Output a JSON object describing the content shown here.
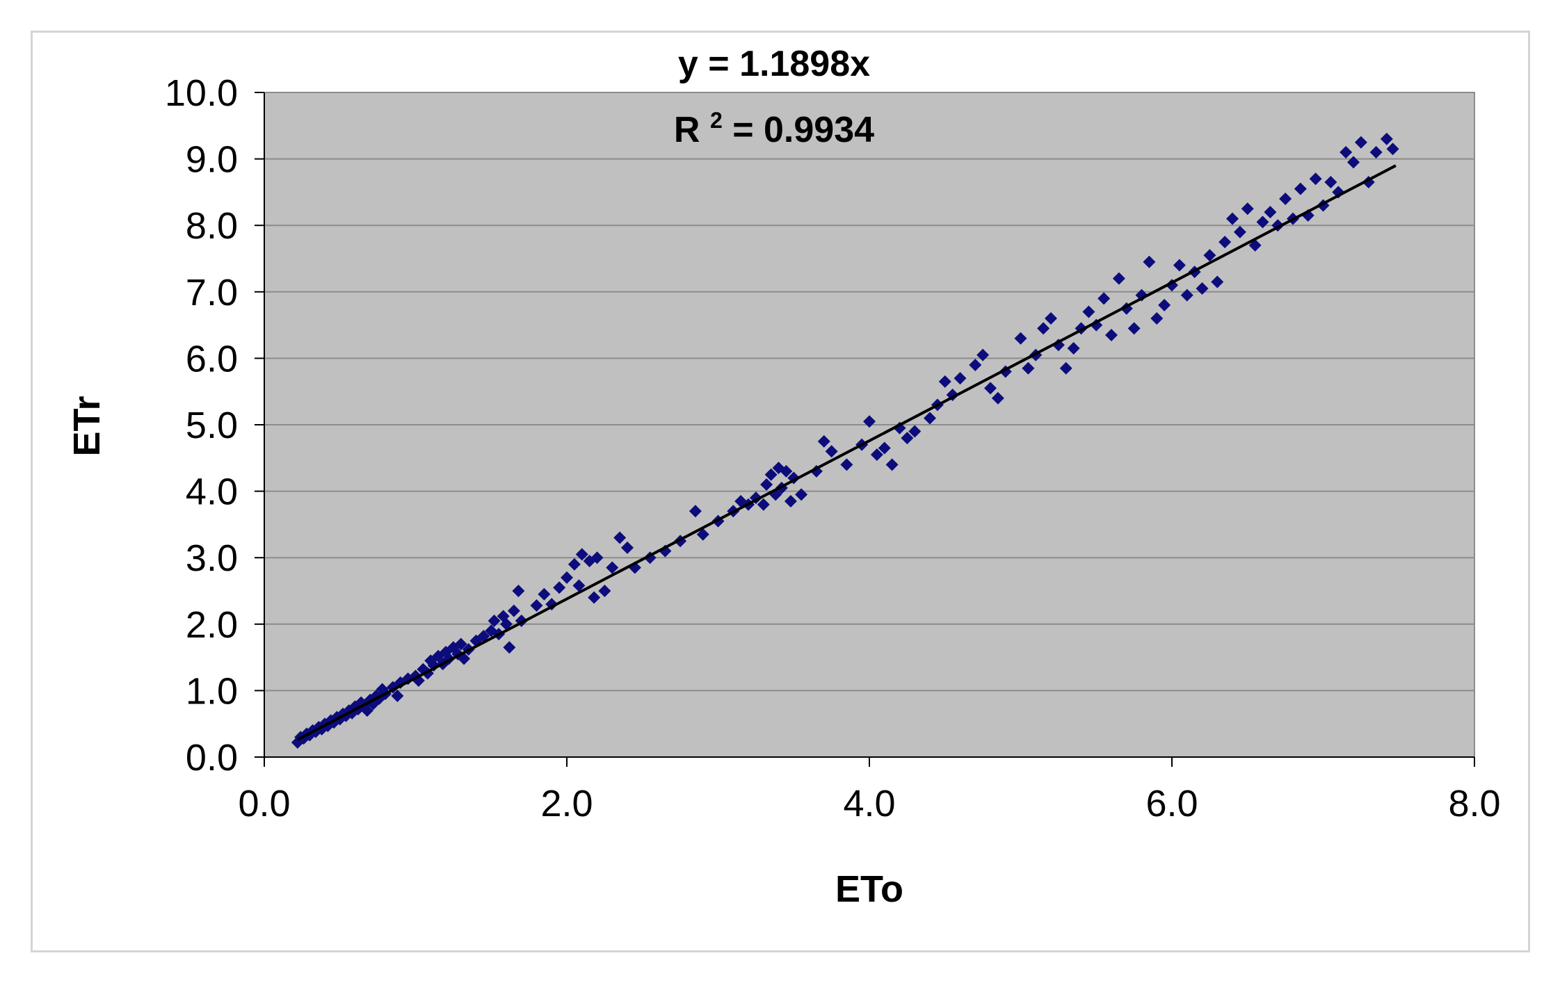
{
  "chart_data": {
    "type": "scatter",
    "xlabel": "ETo",
    "ylabel": "ETr",
    "xlim": [
      0,
      8
    ],
    "ylim": [
      0,
      10
    ],
    "x_ticks": [
      "0.0",
      "2.0",
      "4.0",
      "6.0",
      "8.0"
    ],
    "y_ticks": [
      "0.0",
      "1.0",
      "2.0",
      "3.0",
      "4.0",
      "5.0",
      "6.0",
      "7.0",
      "8.0",
      "9.0",
      "10.0"
    ],
    "grid": true,
    "legend": "none",
    "trendline": {
      "equation": "y = 1.1898x",
      "r2_prefix": "R",
      "r2_sup": "2",
      "r2_value": " = 0.9934",
      "slope": 1.1898,
      "x_range": [
        0.22,
        7.48
      ]
    },
    "colors": {
      "plot_background": "#c0c0c0",
      "marker": "#0c0c7c",
      "trendline": "#000000",
      "gridline": "#8c8c8c"
    },
    "series": [
      {
        "marker": "diamond",
        "points": [
          [
            0.22,
            0.22
          ],
          [
            0.24,
            0.3
          ],
          [
            0.26,
            0.28
          ],
          [
            0.28,
            0.35
          ],
          [
            0.3,
            0.33
          ],
          [
            0.32,
            0.4
          ],
          [
            0.34,
            0.38
          ],
          [
            0.36,
            0.45
          ],
          [
            0.38,
            0.42
          ],
          [
            0.4,
            0.5
          ],
          [
            0.42,
            0.47
          ],
          [
            0.44,
            0.55
          ],
          [
            0.46,
            0.52
          ],
          [
            0.48,
            0.6
          ],
          [
            0.5,
            0.57
          ],
          [
            0.52,
            0.65
          ],
          [
            0.54,
            0.62
          ],
          [
            0.56,
            0.7
          ],
          [
            0.58,
            0.66
          ],
          [
            0.6,
            0.76
          ],
          [
            0.62,
            0.72
          ],
          [
            0.64,
            0.82
          ],
          [
            0.66,
            0.78
          ],
          [
            0.68,
            0.7
          ],
          [
            0.7,
            0.86
          ],
          [
            0.72,
            0.8
          ],
          [
            0.74,
            0.92
          ],
          [
            0.76,
            0.88
          ],
          [
            0.78,
            1.02
          ],
          [
            0.8,
            0.95
          ],
          [
            0.85,
            1.05
          ],
          [
            0.88,
            0.92
          ],
          [
            0.9,
            1.12
          ],
          [
            0.95,
            1.18
          ],
          [
            1.0,
            1.22
          ],
          [
            1.02,
            1.15
          ],
          [
            1.05,
            1.32
          ],
          [
            1.08,
            1.26
          ],
          [
            1.1,
            1.45
          ],
          [
            1.12,
            1.38
          ],
          [
            1.15,
            1.52
          ],
          [
            1.18,
            1.4
          ],
          [
            1.2,
            1.58
          ],
          [
            1.22,
            1.48
          ],
          [
            1.25,
            1.65
          ],
          [
            1.28,
            1.55
          ],
          [
            1.3,
            1.7
          ],
          [
            1.32,
            1.48
          ],
          [
            1.35,
            1.62
          ],
          [
            1.4,
            1.75
          ],
          [
            1.45,
            1.82
          ],
          [
            1.5,
            1.9
          ],
          [
            1.52,
            2.05
          ],
          [
            1.55,
            1.85
          ],
          [
            1.58,
            2.12
          ],
          [
            1.6,
            2.0
          ],
          [
            1.62,
            1.65
          ],
          [
            1.65,
            2.2
          ],
          [
            1.68,
            2.5
          ],
          [
            1.7,
            2.05
          ],
          [
            1.8,
            2.28
          ],
          [
            1.85,
            2.45
          ],
          [
            1.9,
            2.3
          ],
          [
            1.95,
            2.55
          ],
          [
            2.0,
            2.7
          ],
          [
            2.05,
            2.9
          ],
          [
            2.08,
            2.58
          ],
          [
            2.1,
            3.05
          ],
          [
            2.15,
            2.95
          ],
          [
            2.18,
            2.4
          ],
          [
            2.2,
            3.0
          ],
          [
            2.25,
            2.5
          ],
          [
            2.3,
            2.85
          ],
          [
            2.35,
            3.3
          ],
          [
            2.4,
            3.15
          ],
          [
            2.45,
            2.85
          ],
          [
            2.55,
            3.0
          ],
          [
            2.65,
            3.1
          ],
          [
            2.75,
            3.25
          ],
          [
            2.85,
            3.7
          ],
          [
            2.9,
            3.35
          ],
          [
            3.0,
            3.55
          ],
          [
            3.1,
            3.7
          ],
          [
            3.15,
            3.85
          ],
          [
            3.2,
            3.8
          ],
          [
            3.25,
            3.9
          ],
          [
            3.3,
            3.8
          ],
          [
            3.32,
            4.1
          ],
          [
            3.35,
            4.25
          ],
          [
            3.38,
            3.95
          ],
          [
            3.4,
            4.35
          ],
          [
            3.42,
            4.05
          ],
          [
            3.45,
            4.3
          ],
          [
            3.48,
            3.85
          ],
          [
            3.5,
            4.2
          ],
          [
            3.55,
            3.95
          ],
          [
            3.65,
            4.3
          ],
          [
            3.7,
            4.75
          ],
          [
            3.75,
            4.6
          ],
          [
            3.85,
            4.4
          ],
          [
            3.95,
            4.7
          ],
          [
            4.0,
            5.05
          ],
          [
            4.05,
            4.55
          ],
          [
            4.1,
            4.65
          ],
          [
            4.15,
            4.4
          ],
          [
            4.2,
            4.95
          ],
          [
            4.25,
            4.8
          ],
          [
            4.3,
            4.9
          ],
          [
            4.4,
            5.1
          ],
          [
            4.45,
            5.3
          ],
          [
            4.5,
            5.65
          ],
          [
            4.55,
            5.45
          ],
          [
            4.6,
            5.7
          ],
          [
            4.7,
            5.9
          ],
          [
            4.75,
            6.05
          ],
          [
            4.8,
            5.55
          ],
          [
            4.85,
            5.4
          ],
          [
            4.9,
            5.8
          ],
          [
            5.0,
            6.3
          ],
          [
            5.05,
            5.85
          ],
          [
            5.1,
            6.05
          ],
          [
            5.15,
            6.45
          ],
          [
            5.2,
            6.6
          ],
          [
            5.25,
            6.2
          ],
          [
            5.3,
            5.85
          ],
          [
            5.35,
            6.15
          ],
          [
            5.4,
            6.45
          ],
          [
            5.45,
            6.7
          ],
          [
            5.5,
            6.5
          ],
          [
            5.55,
            6.9
          ],
          [
            5.6,
            6.35
          ],
          [
            5.65,
            7.2
          ],
          [
            5.7,
            6.75
          ],
          [
            5.75,
            6.45
          ],
          [
            5.8,
            6.95
          ],
          [
            5.85,
            7.45
          ],
          [
            5.9,
            6.6
          ],
          [
            5.95,
            6.8
          ],
          [
            6.0,
            7.1
          ],
          [
            6.05,
            7.4
          ],
          [
            6.1,
            6.95
          ],
          [
            6.15,
            7.3
          ],
          [
            6.2,
            7.05
          ],
          [
            6.25,
            7.55
          ],
          [
            6.3,
            7.15
          ],
          [
            6.35,
            7.75
          ],
          [
            6.4,
            8.1
          ],
          [
            6.45,
            7.9
          ],
          [
            6.5,
            8.25
          ],
          [
            6.55,
            7.7
          ],
          [
            6.6,
            8.05
          ],
          [
            6.65,
            8.2
          ],
          [
            6.7,
            8.0
          ],
          [
            6.75,
            8.4
          ],
          [
            6.8,
            8.1
          ],
          [
            6.85,
            8.55
          ],
          [
            6.9,
            8.15
          ],
          [
            6.95,
            8.7
          ],
          [
            7.0,
            8.3
          ],
          [
            7.05,
            8.65
          ],
          [
            7.1,
            8.5
          ],
          [
            7.15,
            9.1
          ],
          [
            7.2,
            8.95
          ],
          [
            7.25,
            9.25
          ],
          [
            7.3,
            8.65
          ],
          [
            7.35,
            9.1
          ],
          [
            7.42,
            9.3
          ],
          [
            7.46,
            9.15
          ]
        ]
      }
    ]
  }
}
